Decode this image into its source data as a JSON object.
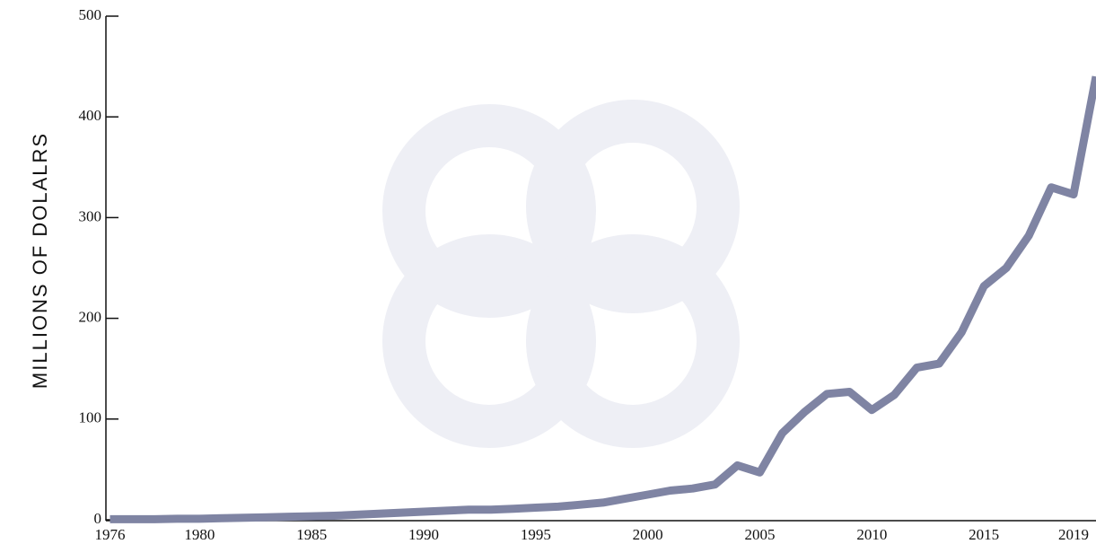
{
  "chart_data": {
    "type": "line",
    "y_label": "MILLIONS OF DOLALRS",
    "x": [
      1976,
      1977,
      1978,
      1979,
      1980,
      1981,
      1982,
      1983,
      1984,
      1985,
      1986,
      1987,
      1988,
      1989,
      1990,
      1991,
      1992,
      1993,
      1994,
      1995,
      1996,
      1997,
      1998,
      1999,
      2000,
      2001,
      2002,
      2003,
      2004,
      2005,
      2006,
      2007,
      2008,
      2009,
      2010,
      2011,
      2012,
      2013,
      2014,
      2015,
      2016,
      2017,
      2018,
      2019,
      2020
    ],
    "series": [
      {
        "color": "#7f84a3",
        "values": [
          0.5,
          0.5,
          0.5,
          1,
          1,
          1.5,
          2,
          2.5,
          3,
          3.5,
          4,
          5,
          6,
          7,
          8,
          9,
          10,
          10,
          11,
          12,
          13,
          15,
          17,
          21,
          25,
          29,
          31,
          35,
          54,
          47,
          86,
          107,
          125,
          127,
          109,
          124,
          151,
          155,
          186,
          232,
          250,
          282,
          330,
          323,
          440
        ]
      }
    ],
    "xlim": [
      1975.9,
      2020
    ],
    "xticks": [
      1976,
      1980,
      1985,
      1990,
      1995,
      2000,
      2005,
      2010,
      2015,
      2019
    ],
    "ylim": [
      0,
      500
    ],
    "yticks": [
      0,
      100,
      200,
      300,
      400,
      500
    ]
  }
}
